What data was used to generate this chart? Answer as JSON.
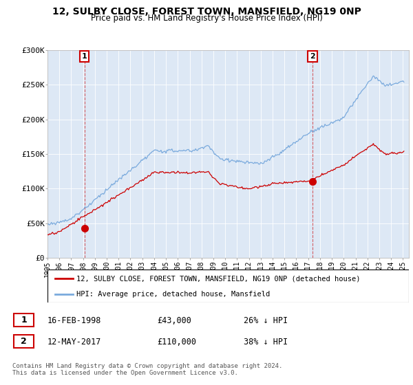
{
  "title1": "12, SULBY CLOSE, FOREST TOWN, MANSFIELD, NG19 0NP",
  "title2": "Price paid vs. HM Land Registry's House Price Index (HPI)",
  "legend_line1": "12, SULBY CLOSE, FOREST TOWN, MANSFIELD, NG19 0NP (detached house)",
  "legend_line2": "HPI: Average price, detached house, Mansfield",
  "sale1_date": "16-FEB-1998",
  "sale1_price": "£43,000",
  "sale1_hpi": "26% ↓ HPI",
  "sale2_date": "12-MAY-2017",
  "sale2_price": "£110,000",
  "sale2_hpi": "38% ↓ HPI",
  "footnote": "Contains HM Land Registry data © Crown copyright and database right 2024.\nThis data is licensed under the Open Government Licence v3.0.",
  "sale_color": "#cc0000",
  "hpi_color": "#7aaadd",
  "chart_bg_color": "#dde8f5",
  "marker_box_color": "#cc0000",
  "grid_color": "#ffffff",
  "ylim": [
    0,
    300000
  ],
  "yticks": [
    0,
    50000,
    100000,
    150000,
    200000,
    250000,
    300000
  ],
  "ytick_labels": [
    "£0",
    "£50K",
    "£100K",
    "£150K",
    "£200K",
    "£250K",
    "£300K"
  ],
  "sale1_year": 1998.12,
  "sale1_value": 43000,
  "sale2_year": 2017.37,
  "sale2_value": 110000,
  "xmin": 1995.0,
  "xmax": 2025.5
}
